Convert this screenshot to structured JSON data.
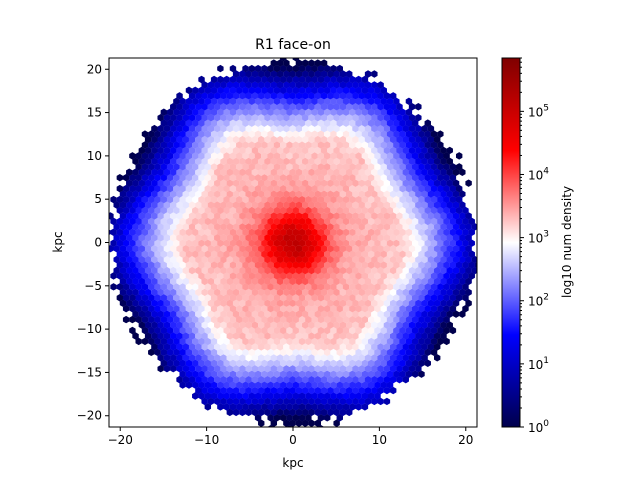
{
  "chart_data": {
    "type": "hexbin",
    "title": "R1 face-on",
    "xlabel": "kpc",
    "ylabel": "kpc",
    "xlim": [
      -21.3,
      21.3
    ],
    "ylim": [
      -21.3,
      21.3
    ],
    "xticks": [
      -20,
      -10,
      0,
      10,
      20
    ],
    "yticks": [
      -20,
      -15,
      -10,
      -5,
      0,
      5,
      10,
      15,
      20
    ],
    "grid": false,
    "colorbar": {
      "label": "log10 num density",
      "scale": "log",
      "range": [
        1,
        700000
      ],
      "ticks": [
        {
          "value": 1,
          "base": "10",
          "exp": "0"
        },
        {
          "value": 10,
          "base": "10",
          "exp": "1"
        },
        {
          "value": 100,
          "base": "10",
          "exp": "2"
        },
        {
          "value": 1000,
          "base": "10",
          "exp": "3"
        },
        {
          "value": 10000,
          "base": "10",
          "exp": "4"
        },
        {
          "value": 100000,
          "base": "10",
          "exp": "5"
        }
      ],
      "colormap": [
        "#00004c",
        "#0000ff",
        "#ffffff",
        "#ff0000",
        "#7f0000"
      ]
    },
    "density_model": {
      "disk_radius_kpc": 21,
      "core_peak_log10": 5.2,
      "core_scale_kpc": 2.6,
      "inner_plateau_log10": 3.6,
      "transition_radius_kpc": 12,
      "edge_log10": 0.3
    }
  }
}
